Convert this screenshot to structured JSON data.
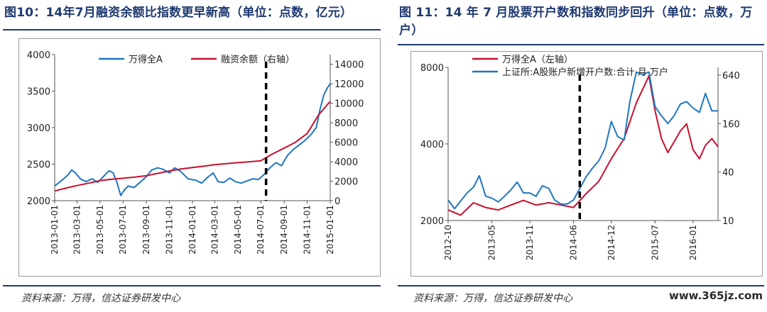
{
  "figures": [
    {
      "title": "图10：14年7月融资余额比指数更早新高（单位：点数，亿元）",
      "source": "资料来源：万得，信达证券研发中心"
    },
    {
      "title": "图 11：14 年 7 月股票开户数和指数同步回升（单位：点数，万户）",
      "source": "资料来源：万得，信达证券研发中心"
    }
  ],
  "watermark": "www.365jz.com",
  "colors": {
    "blue": "#1f77c0",
    "red": "#c8102e",
    "title": "#1f3a70"
  },
  "chart_data": [
    {
      "type": "line",
      "title": "",
      "x_type": "date",
      "x_ticks": [
        "2013-01-01",
        "2013-03-01",
        "2013-05-01",
        "2013-07-01",
        "2013-09-01",
        "2013-11-01",
        "2014-01-01",
        "2014-03-01",
        "2014-05-01",
        "2014-07-01",
        "2014-09-01",
        "2014-11-01",
        "2015-01-01"
      ],
      "y_left": {
        "ticks": [
          2000,
          2500,
          3000,
          3500,
          4000
        ],
        "range": [
          2000,
          4000
        ]
      },
      "y_right": {
        "ticks": [
          0,
          2000,
          4000,
          6000,
          8000,
          10000,
          12000,
          14000
        ],
        "range": [
          0,
          15000
        ]
      },
      "legend": "top",
      "grid": false,
      "marker_line": {
        "x": "2014-07-15",
        "style": "dashed"
      },
      "series": [
        {
          "name": "万得全A",
          "axis": "left",
          "color": "#1f77c0",
          "points": [
            [
              "2013-01-01",
              2200
            ],
            [
              "2013-01-20",
              2280
            ],
            [
              "2013-02-05",
              2350
            ],
            [
              "2013-02-15",
              2420
            ],
            [
              "2013-02-25",
              2380
            ],
            [
              "2013-03-10",
              2300
            ],
            [
              "2013-03-25",
              2260
            ],
            [
              "2013-04-10",
              2300
            ],
            [
              "2013-04-25",
              2250
            ],
            [
              "2013-05-10",
              2330
            ],
            [
              "2013-05-25",
              2410
            ],
            [
              "2013-06-05",
              2380
            ],
            [
              "2013-06-15",
              2250
            ],
            [
              "2013-06-25",
              2070
            ],
            [
              "2013-07-05",
              2150
            ],
            [
              "2013-07-15",
              2200
            ],
            [
              "2013-07-30",
              2180
            ],
            [
              "2013-08-15",
              2250
            ],
            [
              "2013-09-01",
              2330
            ],
            [
              "2013-09-15",
              2420
            ],
            [
              "2013-10-01",
              2450
            ],
            [
              "2013-10-15",
              2430
            ],
            [
              "2013-11-01",
              2380
            ],
            [
              "2013-11-15",
              2450
            ],
            [
              "2013-12-01",
              2400
            ],
            [
              "2013-12-20",
              2300
            ],
            [
              "2014-01-10",
              2280
            ],
            [
              "2014-01-25",
              2240
            ],
            [
              "2014-02-10",
              2320
            ],
            [
              "2014-02-25",
              2380
            ],
            [
              "2014-03-10",
              2260
            ],
            [
              "2014-03-25",
              2250
            ],
            [
              "2014-04-10",
              2310
            ],
            [
              "2014-04-25",
              2260
            ],
            [
              "2014-05-10",
              2240
            ],
            [
              "2014-05-25",
              2270
            ],
            [
              "2014-06-10",
              2300
            ],
            [
              "2014-06-25",
              2290
            ],
            [
              "2014-07-10",
              2360
            ],
            [
              "2014-07-25",
              2450
            ],
            [
              "2014-08-10",
              2520
            ],
            [
              "2014-08-25",
              2480
            ],
            [
              "2014-09-10",
              2620
            ],
            [
              "2014-09-25",
              2700
            ],
            [
              "2014-10-10",
              2760
            ],
            [
              "2014-10-25",
              2820
            ],
            [
              "2014-11-10",
              2900
            ],
            [
              "2014-11-25",
              3000
            ],
            [
              "2014-12-05",
              3250
            ],
            [
              "2014-12-15",
              3450
            ],
            [
              "2014-12-25",
              3550
            ],
            [
              "2015-01-01",
              3600
            ]
          ]
        },
        {
          "name": "融资余额（右轴）",
          "axis": "right",
          "color": "#c8102e",
          "points": [
            [
              "2013-01-01",
              1000
            ],
            [
              "2013-02-01",
              1300
            ],
            [
              "2013-03-01",
              1550
            ],
            [
              "2013-04-01",
              1800
            ],
            [
              "2013-05-01",
              2050
            ],
            [
              "2013-06-01",
              2200
            ],
            [
              "2013-07-01",
              2300
            ],
            [
              "2013-08-01",
              2420
            ],
            [
              "2013-09-01",
              2560
            ],
            [
              "2013-10-01",
              2800
            ],
            [
              "2013-11-01",
              3050
            ],
            [
              "2013-12-01",
              3250
            ],
            [
              "2014-01-01",
              3400
            ],
            [
              "2014-02-01",
              3550
            ],
            [
              "2014-03-01",
              3700
            ],
            [
              "2014-04-01",
              3800
            ],
            [
              "2014-05-01",
              3900
            ],
            [
              "2014-06-01",
              4000
            ],
            [
              "2014-07-01",
              4100
            ],
            [
              "2014-08-01",
              4800
            ],
            [
              "2014-09-01",
              5400
            ],
            [
              "2014-10-01",
              6000
            ],
            [
              "2014-11-01",
              6900
            ],
            [
              "2014-12-01",
              8800
            ],
            [
              "2015-01-01",
              10200
            ]
          ]
        }
      ]
    },
    {
      "type": "line",
      "title": "",
      "x_type": "date",
      "x_ticks": [
        "2012-10",
        "2013-05",
        "2013-11",
        "2014-06",
        "2014-12",
        "2015-07",
        "2016-01"
      ],
      "y_left": {
        "ticks": [
          2000,
          4000,
          8000
        ],
        "scale": "log",
        "range": [
          2000,
          8000
        ]
      },
      "y_right": {
        "ticks": [
          10,
          40,
          160,
          640
        ],
        "scale": "log",
        "range": [
          10,
          800
        ]
      },
      "legend": "top",
      "grid": false,
      "marker_line": {
        "x": "2014-07",
        "style": "dashed"
      },
      "series": [
        {
          "name": "万得全A（左轴）",
          "axis": "left",
          "color": "#c8102e",
          "points": [
            [
              "2012-10",
              2200
            ],
            [
              "2012-12",
              2100
            ],
            [
              "2013-02",
              2350
            ],
            [
              "2013-04",
              2250
            ],
            [
              "2013-06",
              2200
            ],
            [
              "2013-08",
              2300
            ],
            [
              "2013-10",
              2400
            ],
            [
              "2013-12",
              2300
            ],
            [
              "2014-02",
              2350
            ],
            [
              "2014-04",
              2300
            ],
            [
              "2014-06",
              2250
            ],
            [
              "2014-08",
              2550
            ],
            [
              "2014-10",
              2850
            ],
            [
              "2014-12",
              3500
            ],
            [
              "2015-02",
              4200
            ],
            [
              "2015-04",
              5800
            ],
            [
              "2015-06",
              7400
            ],
            [
              "2015-07",
              5400
            ],
            [
              "2015-08",
              4200
            ],
            [
              "2015-09",
              3700
            ],
            [
              "2015-11",
              4500
            ],
            [
              "2015-12",
              4800
            ],
            [
              "2016-01",
              3800
            ],
            [
              "2016-02",
              3500
            ],
            [
              "2016-03",
              3950
            ],
            [
              "2016-04",
              4200
            ],
            [
              "2016-05",
              3900
            ]
          ]
        },
        {
          "name": "上证所:A股账户新增开户数:合计 月 万户",
          "axis": "right",
          "color": "#1f77c0",
          "points": [
            [
              "2012-10",
              18
            ],
            [
              "2012-11",
              14
            ],
            [
              "2013-01",
              22
            ],
            [
              "2013-02",
              26
            ],
            [
              "2013-03",
              36
            ],
            [
              "2013-04",
              20
            ],
            [
              "2013-05",
              19
            ],
            [
              "2013-06",
              17
            ],
            [
              "2013-07",
              20
            ],
            [
              "2013-08",
              24
            ],
            [
              "2013-09",
              30
            ],
            [
              "2013-10",
              22
            ],
            [
              "2013-11",
              22
            ],
            [
              "2013-12",
              20
            ],
            [
              "2014-01",
              27
            ],
            [
              "2014-02",
              25
            ],
            [
              "2014-03",
              18
            ],
            [
              "2014-04",
              16
            ],
            [
              "2014-05",
              16
            ],
            [
              "2014-06",
              18
            ],
            [
              "2014-07",
              25
            ],
            [
              "2014-08",
              35
            ],
            [
              "2014-09",
              45
            ],
            [
              "2014-10",
              55
            ],
            [
              "2014-11",
              80
            ],
            [
              "2014-12",
              170
            ],
            [
              "2015-01",
              110
            ],
            [
              "2015-02",
              100
            ],
            [
              "2015-03",
              300
            ],
            [
              "2015-04",
              700
            ],
            [
              "2015-05",
              650
            ],
            [
              "2015-06",
              700
            ],
            [
              "2015-07",
              260
            ],
            [
              "2015-08",
              200
            ],
            [
              "2015-09",
              160
            ],
            [
              "2015-10",
              200
            ],
            [
              "2015-11",
              280
            ],
            [
              "2015-12",
              300
            ],
            [
              "2016-01",
              250
            ],
            [
              "2016-02",
              220
            ],
            [
              "2016-03",
              380
            ],
            [
              "2016-04",
              230
            ],
            [
              "2016-05",
              230
            ]
          ]
        }
      ]
    }
  ]
}
